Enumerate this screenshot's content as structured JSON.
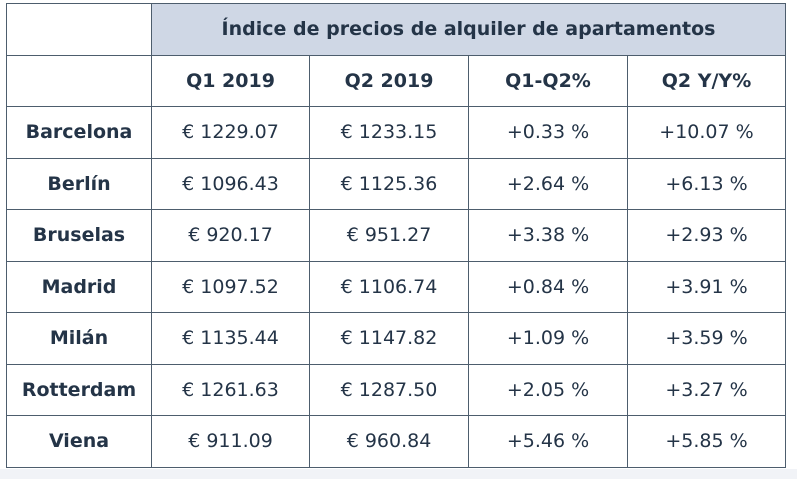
{
  "chart_data": {
    "type": "table",
    "title": "Índice de precios de alquiler de apartamentos",
    "columns": [
      "Q1 2019",
      "Q2 2019",
      "Q1-Q2%",
      "Q2 Y/Y%"
    ],
    "rows": [
      {
        "city": "Barcelona",
        "values": [
          "€ 1229.07",
          "€ 1233.15",
          "+0.33 %",
          "+10.07 %"
        ]
      },
      {
        "city": "Berlín",
        "values": [
          "€ 1096.43",
          "€ 1125.36",
          "+2.64 %",
          "+6.13 %"
        ]
      },
      {
        "city": "Bruselas",
        "values": [
          "€ 920.17",
          "€ 951.27",
          "+3.38 %",
          "+2.93 %"
        ]
      },
      {
        "city": "Madrid",
        "values": [
          "€ 1097.52",
          "€ 1106.74",
          "+0.84 %",
          "+3.91 %"
        ]
      },
      {
        "city": "Milán",
        "values": [
          "€ 1135.44",
          "€ 1147.82",
          "+1.09 %",
          "+3.59 %"
        ]
      },
      {
        "city": "Rotterdam",
        "values": [
          "€ 1261.63",
          "€ 1287.50",
          "+2.05 %",
          "+3.27 %"
        ]
      },
      {
        "city": "Viena",
        "values": [
          "€ 911.09",
          "€ 960.84",
          "+5.46 %",
          "+5.85 %"
        ]
      }
    ]
  },
  "colors": {
    "header_fill": "#cfd7e5",
    "text": "#243447",
    "border": "#4d5d6d"
  }
}
